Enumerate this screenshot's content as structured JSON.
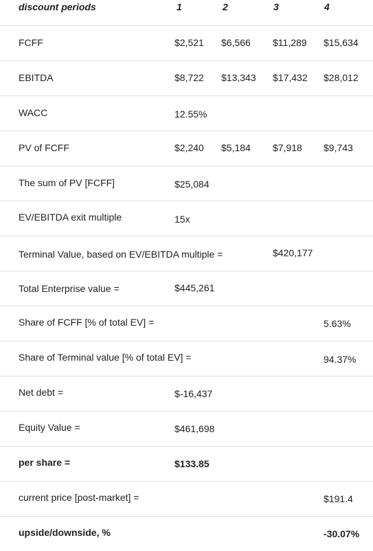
{
  "header": {
    "label": "discount periods",
    "periods": [
      "1",
      "2",
      "3",
      "4"
    ]
  },
  "rows": [
    {
      "label": "FCFF",
      "values": [
        "$2,521",
        "$6,566",
        "$11,289",
        "$15,634"
      ]
    },
    {
      "label": "EBITDA",
      "values": [
        "$8,722",
        "$13,343",
        "$17,432",
        "$28,012"
      ]
    },
    {
      "label": "WACC",
      "values": [
        "12.55%",
        "",
        "",
        ""
      ]
    },
    {
      "label": "PV of FCFF",
      "values": [
        "$2,240",
        "$5,184",
        "$7,918",
        "$9,743"
      ]
    },
    {
      "label": "The sum of PV [FCFF]",
      "values": [
        "$25,084",
        "",
        "",
        ""
      ]
    },
    {
      "label": "EV/EBITDA exit multiple",
      "values": [
        "15x",
        "",
        "",
        ""
      ]
    },
    {
      "label": "Terminal Value, based on EV/EBITDA multiple =",
      "values": [
        "",
        "",
        "$420,177",
        ""
      ]
    },
    {
      "label": "Total Enterprise value =",
      "values": [
        "$445,261",
        "",
        "",
        ""
      ]
    },
    {
      "label": "Share of FCFF [% of total EV] =",
      "values": [
        "",
        "",
        "",
        "5.63%"
      ]
    },
    {
      "label": "Share of Terminal value [% of total EV] =",
      "values": [
        "",
        "",
        "",
        "94.37%"
      ]
    },
    {
      "label": "Net debt =",
      "values": [
        "$-16,437",
        "",
        "",
        ""
      ]
    },
    {
      "label": "Equity Value =",
      "values": [
        "$461,698",
        "",
        "",
        ""
      ]
    },
    {
      "label": "per share =",
      "values": [
        "$133.85",
        "",
        "",
        ""
      ]
    },
    {
      "label": "current price [post-market] =",
      "values": [
        "",
        "",
        "",
        "$191.4"
      ]
    },
    {
      "label": "upside/downside, %",
      "values": [
        "",
        "",
        "",
        "-30.07%"
      ]
    }
  ]
}
